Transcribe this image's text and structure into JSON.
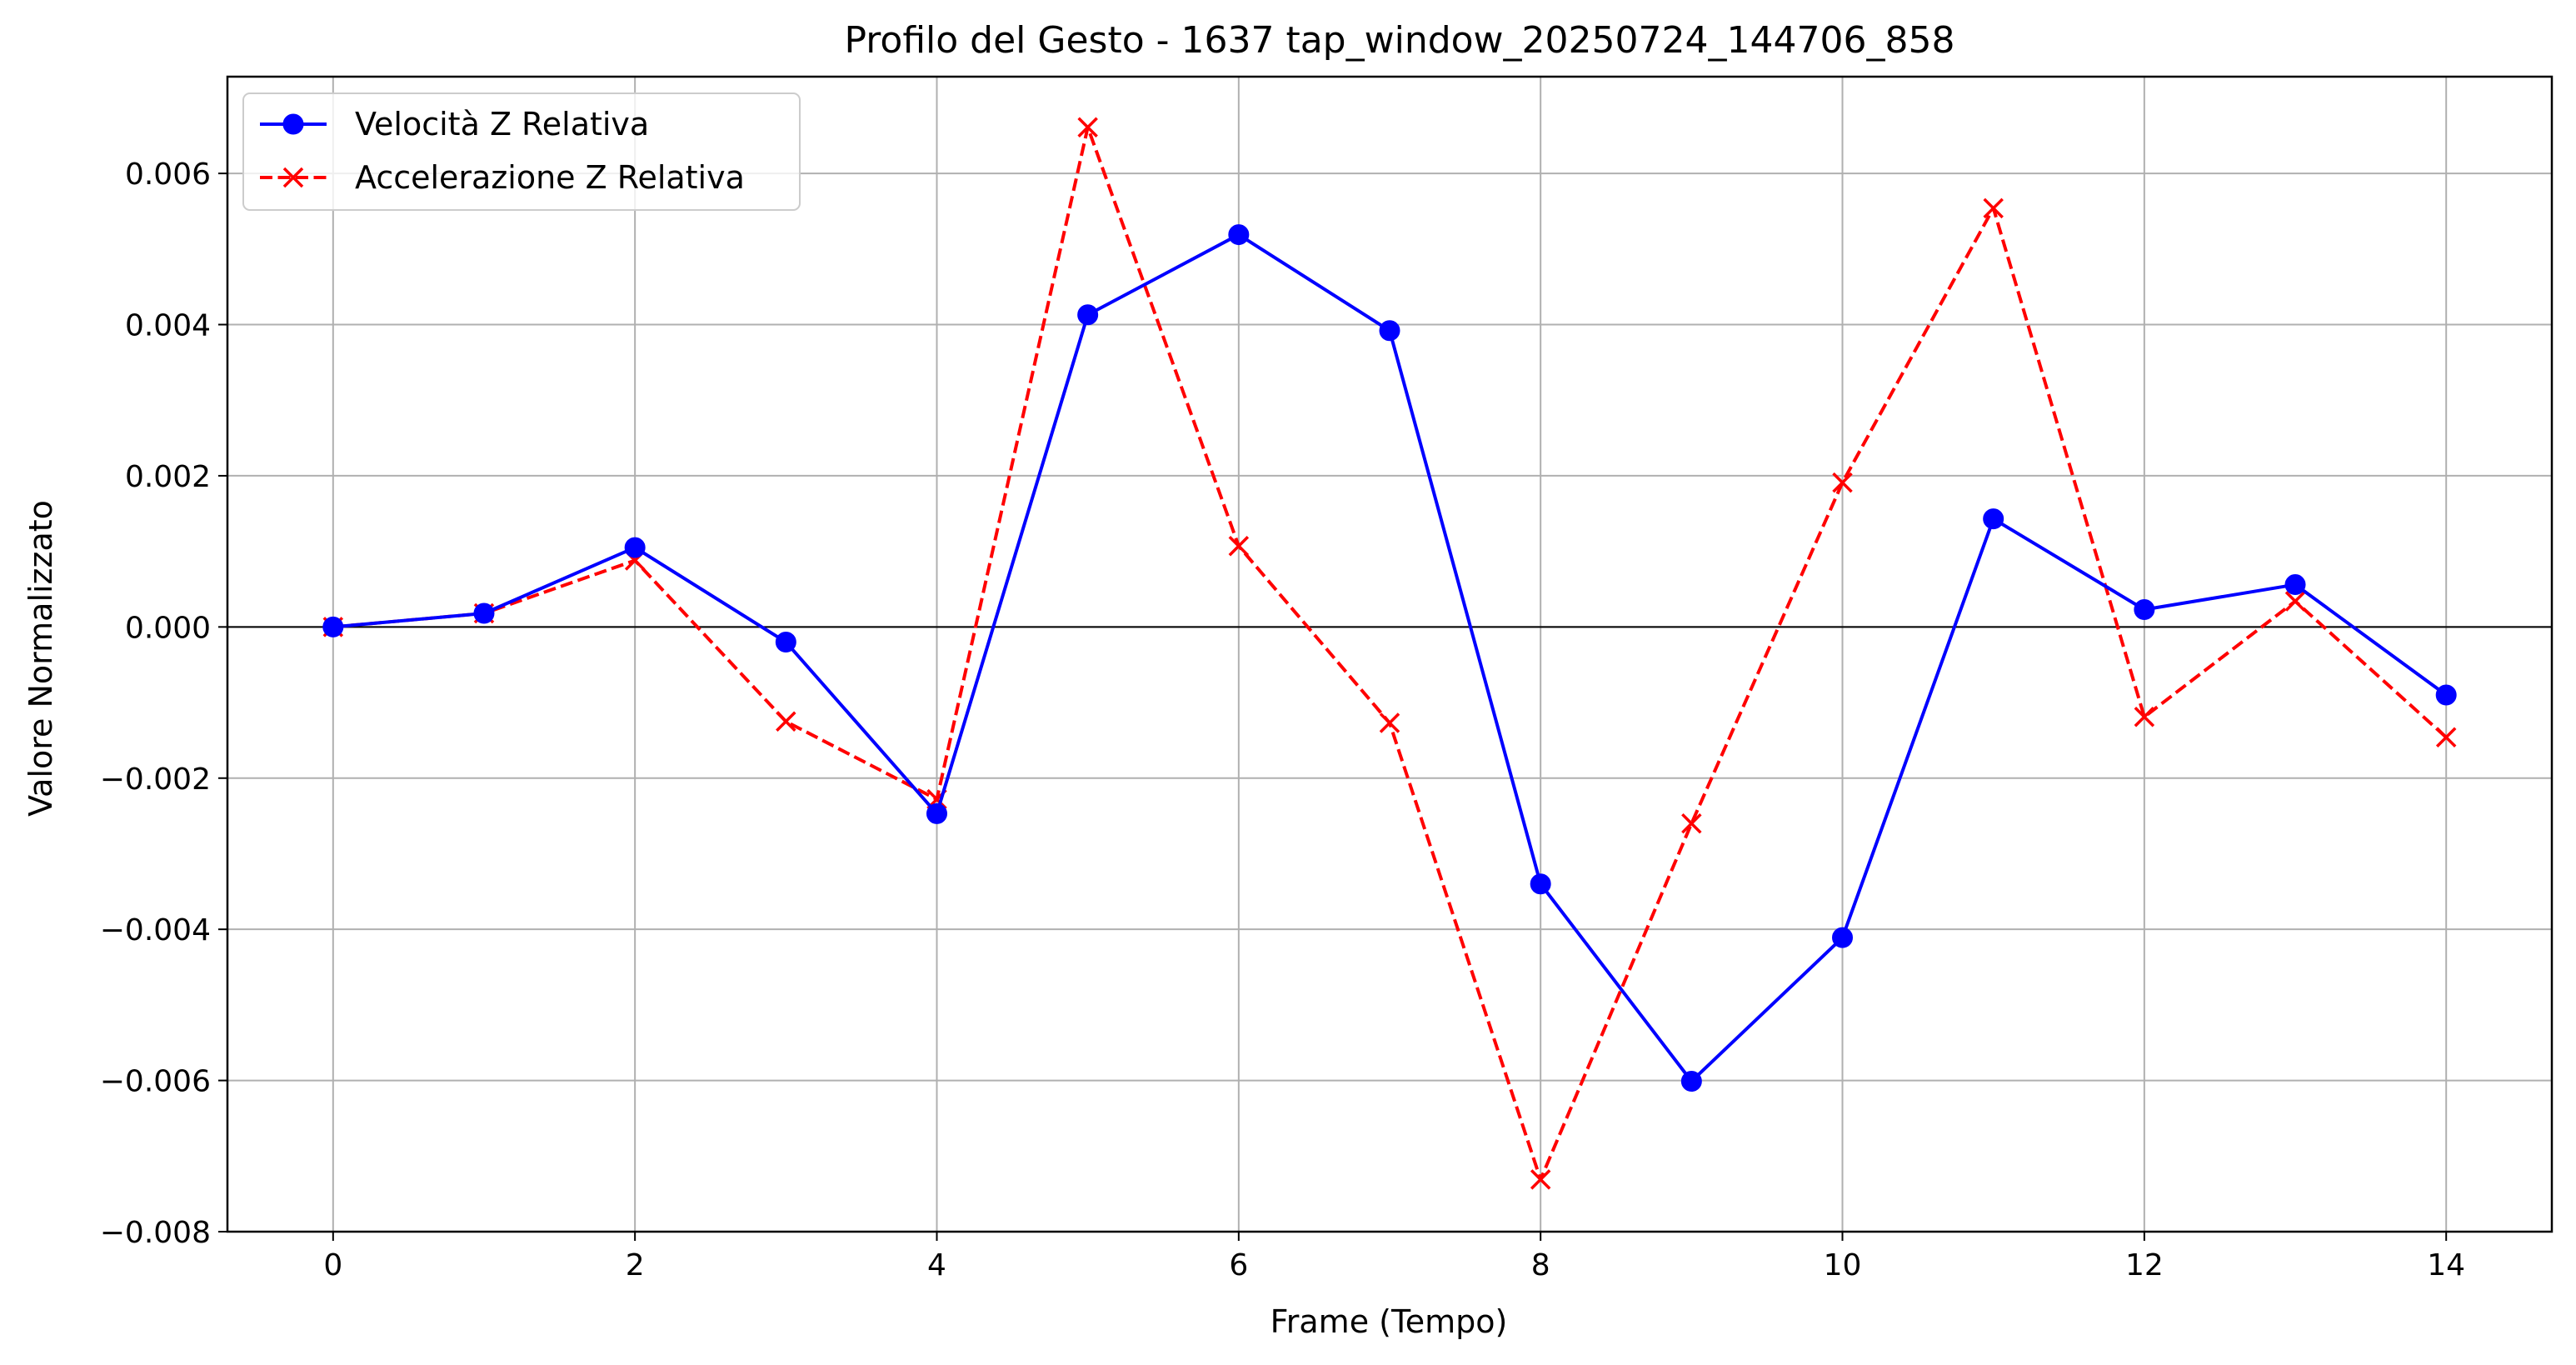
{
  "chart_data": {
    "type": "line",
    "title": "Profilo del Gesto - 1637 tap_window_20250724_144706_858",
    "xlabel": "Frame (Tempo)",
    "ylabel": "Valore Normalizzato",
    "x": [
      0,
      1,
      2,
      3,
      4,
      5,
      6,
      7,
      8,
      9,
      10,
      11,
      12,
      13,
      14
    ],
    "xlim": [
      -0.7,
      14.7
    ],
    "ylim": [
      -0.008,
      0.00728
    ],
    "xticks": [
      0,
      2,
      4,
      6,
      8,
      10,
      12,
      14
    ],
    "xtick_labels": [
      "0",
      "2",
      "4",
      "6",
      "8",
      "10",
      "12",
      "14"
    ],
    "yticks": [
      -0.008,
      -0.006,
      -0.004,
      -0.002,
      0,
      0.002,
      0.004,
      0.006
    ],
    "ytick_labels": [
      "−0.008",
      "−0.006",
      "−0.004",
      "−0.002",
      "0.000",
      "0.002",
      "0.004",
      "0.006"
    ],
    "grid": true,
    "zero_line": true,
    "legend_position": "top-left",
    "series": [
      {
        "name": "Velocità Z Relativa",
        "color": "#0000ff",
        "line_style": "solid",
        "marker": "circle",
        "values": [
          0,
          0.00018,
          0.00105,
          -0.0002,
          -0.00247,
          0.00413,
          0.00519,
          0.00392,
          -0.0034,
          -0.00601,
          -0.00411,
          0.00143,
          0.00023,
          0.00056,
          -0.0009
        ]
      },
      {
        "name": "Accelerazione Z Relativa",
        "color": "#ff0000",
        "line_style": "dashed",
        "marker": "x",
        "values": [
          0,
          0.00018,
          0.00088,
          -0.00125,
          -0.00228,
          0.00661,
          0.00107,
          -0.00127,
          -0.00731,
          -0.0026,
          0.00191,
          0.00554,
          -0.00119,
          0.00034,
          -0.00146
        ]
      }
    ]
  }
}
